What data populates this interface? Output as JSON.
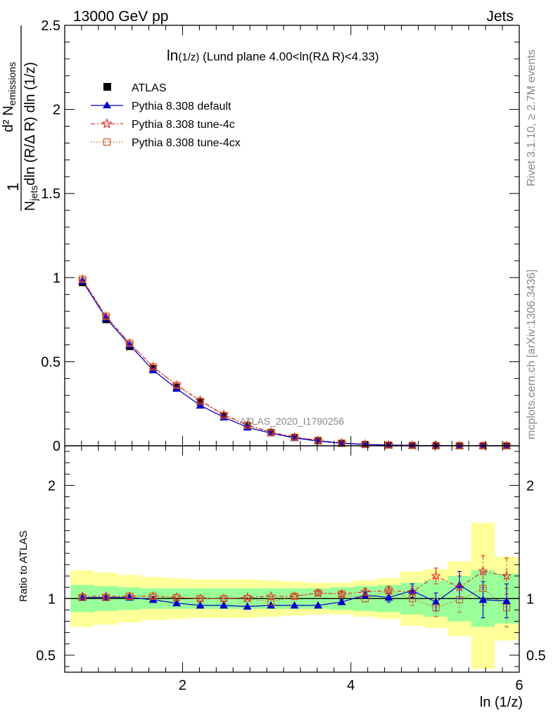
{
  "header": {
    "left": "13000 GeV pp",
    "right": "Jets"
  },
  "plot_title": {
    "main": "ln",
    "sub": "(1/z)",
    "rest": " (Lund plane 4.00<ln(RΔ R)<4.33)"
  },
  "ylabel_top": {
    "one": "1",
    "line1": "d² N",
    "line1_sub": "emissions",
    "line2a": "N",
    "line2_sub": "jets",
    "line2b": "dln (R/Δ R) dln (1/z)"
  },
  "ylabel_ratio": "Ratio to ATLAS",
  "xlabel": "ln (1/z)",
  "watermark": "ATLAS_2020_I1790256",
  "side_text_1": "Rivet 3.1.10, ≥ 2.7M events",
  "side_text_2": "mcplots.cern.ch [arXiv:1306.3436]",
  "colors": {
    "data": "#000000",
    "default": "#0000cc",
    "tune4c": "#e03030",
    "tune4cx": "#c85a1e",
    "band_inner": "#99ff99",
    "band_outer": "#ffff99"
  },
  "chart_data": [
    {
      "type": "scatter",
      "panel": "main",
      "xlim": [
        0.6,
        6.0
      ],
      "ylim": [
        0,
        2.5
      ],
      "yticks": [
        "0",
        "0.5",
        "1",
        "1.5",
        "2",
        "2.5"
      ],
      "xticks": [
        "2",
        "4",
        "6"
      ],
      "x": [
        0.81,
        1.09,
        1.37,
        1.65,
        1.93,
        2.21,
        2.49,
        2.77,
        3.05,
        3.33,
        3.61,
        3.89,
        4.17,
        4.45,
        4.73,
        5.01,
        5.29,
        5.57,
        5.85
      ],
      "series": [
        {
          "name": "ATLAS",
          "values": [
            0.97,
            0.75,
            0.59,
            0.46,
            0.35,
            0.26,
            0.18,
            0.12,
            0.08,
            0.05,
            0.03,
            0.015,
            0.008,
            0.004,
            0.002,
            0.001,
            0.0005,
            0.0003,
            0.0002
          ]
        },
        {
          "name": "Pythia 8.308 default",
          "values": [
            0.98,
            0.76,
            0.6,
            0.45,
            0.34,
            0.24,
            0.17,
            0.11,
            0.075,
            0.047,
            0.028,
            0.015,
            0.008,
            0.004,
            0.002,
            0.001,
            0.0005,
            0.0003,
            0.0002
          ]
        },
        {
          "name": "Pythia 8.308 tune-4c",
          "values": [
            0.99,
            0.77,
            0.61,
            0.47,
            0.36,
            0.27,
            0.185,
            0.125,
            0.082,
            0.052,
            0.032,
            0.016,
            0.009,
            0.0045,
            0.0022,
            0.0012,
            0.0006,
            0.0004,
            0.0003
          ]
        },
        {
          "name": "Pythia 8.308 tune-4cx",
          "values": [
            0.99,
            0.77,
            0.61,
            0.47,
            0.36,
            0.265,
            0.18,
            0.122,
            0.078,
            0.051,
            0.032,
            0.016,
            0.008,
            0.0045,
            0.002,
            0.001,
            0.0005,
            0.0003,
            0.0002
          ]
        }
      ]
    },
    {
      "type": "scatter",
      "panel": "ratio",
      "ylabel": "Ratio to ATLAS",
      "xlabel": "ln (1/z)",
      "xlim": [
        0.6,
        6.0
      ],
      "ylim": [
        0.35,
        2.35
      ],
      "yticks": [
        "0.5",
        "1",
        "2"
      ],
      "xticks": [
        "2",
        "4",
        "6"
      ],
      "x": [
        0.81,
        1.09,
        1.37,
        1.65,
        1.93,
        2.21,
        2.49,
        2.77,
        3.05,
        3.33,
        3.61,
        3.89,
        4.17,
        4.45,
        4.73,
        5.01,
        5.29,
        5.57,
        5.85
      ],
      "bins": [
        [
          0.67,
          0.95
        ],
        [
          0.95,
          1.23
        ],
        [
          1.23,
          1.51
        ],
        [
          1.51,
          1.79
        ],
        [
          1.79,
          2.07
        ],
        [
          2.07,
          2.35
        ],
        [
          2.35,
          2.63
        ],
        [
          2.63,
          2.91
        ],
        [
          2.91,
          3.19
        ],
        [
          3.19,
          3.47
        ],
        [
          3.47,
          3.75
        ],
        [
          3.75,
          4.03
        ],
        [
          4.03,
          4.31
        ],
        [
          4.31,
          4.59
        ],
        [
          4.59,
          4.87
        ],
        [
          4.87,
          5.15
        ],
        [
          5.15,
          5.43
        ],
        [
          5.43,
          5.71
        ],
        [
          5.71,
          5.99
        ]
      ],
      "band_inner": [
        [
          0.88,
          1.12
        ],
        [
          0.89,
          1.11
        ],
        [
          0.9,
          1.1
        ],
        [
          0.91,
          1.09
        ],
        [
          0.91,
          1.09
        ],
        [
          0.91,
          1.09
        ],
        [
          0.91,
          1.09
        ],
        [
          0.91,
          1.09
        ],
        [
          0.91,
          1.09
        ],
        [
          0.91,
          1.09
        ],
        [
          0.91,
          1.09
        ],
        [
          0.9,
          1.1
        ],
        [
          0.89,
          1.11
        ],
        [
          0.88,
          1.12
        ],
        [
          0.86,
          1.14
        ],
        [
          0.84,
          1.16
        ],
        [
          0.8,
          1.2
        ],
        [
          0.75,
          1.25
        ],
        [
          0.78,
          1.22
        ]
      ],
      "band_outer": [
        [
          0.75,
          1.25
        ],
        [
          0.77,
          1.23
        ],
        [
          0.79,
          1.21
        ],
        [
          0.81,
          1.19
        ],
        [
          0.82,
          1.18
        ],
        [
          0.83,
          1.17
        ],
        [
          0.83,
          1.17
        ],
        [
          0.83,
          1.17
        ],
        [
          0.84,
          1.16
        ],
        [
          0.85,
          1.15
        ],
        [
          0.86,
          1.14
        ],
        [
          0.86,
          1.14
        ],
        [
          0.84,
          1.16
        ],
        [
          0.82,
          1.18
        ],
        [
          0.76,
          1.24
        ],
        [
          0.74,
          1.26
        ],
        [
          0.67,
          1.33
        ],
        [
          0.38,
          1.67
        ],
        [
          0.63,
          1.37
        ]
      ],
      "series": [
        {
          "name": "Pythia 8.308 default",
          "values": [
            1.01,
            1.01,
            1.01,
            0.99,
            0.96,
            0.94,
            0.94,
            0.93,
            0.94,
            0.94,
            0.94,
            0.97,
            1.03,
            1.01,
            1.07,
            0.97,
            1.12,
            0.99,
            0.98
          ],
          "err": [
            0.01,
            0.01,
            0.01,
            0.01,
            0.01,
            0.01,
            0.01,
            0.01,
            0.01,
            0.01,
            0.01,
            0.02,
            0.03,
            0.04,
            0.06,
            0.08,
            0.12,
            0.16,
            0.15
          ]
        },
        {
          "name": "Pythia 8.308 tune-4c",
          "values": [
            1.02,
            1.02,
            1.02,
            1.02,
            1.01,
            1.0,
            1.0,
            1.01,
            1.02,
            1.02,
            1.05,
            1.04,
            1.06,
            1.07,
            1.06,
            1.2,
            1.1,
            1.24,
            1.2
          ],
          "err": [
            0.01,
            0.01,
            0.01,
            0.01,
            0.01,
            0.01,
            0.01,
            0.01,
            0.01,
            0.01,
            0.02,
            0.02,
            0.03,
            0.04,
            0.05,
            0.07,
            0.1,
            0.14,
            0.16
          ]
        },
        {
          "name": "Pythia 8.308 tune-4cx",
          "values": [
            1.01,
            1.01,
            1.02,
            1.02,
            1.01,
            1.0,
            1.0,
            1.0,
            0.97,
            1.02,
            1.05,
            1.04,
            1.0,
            1.07,
            1.0,
            0.92,
            0.99,
            1.09,
            0.92
          ],
          "err": [
            0.01,
            0.01,
            0.01,
            0.01,
            0.01,
            0.01,
            0.01,
            0.01,
            0.02,
            0.02,
            0.02,
            0.02,
            0.03,
            0.04,
            0.06,
            0.08,
            0.11,
            0.15,
            0.17
          ]
        }
      ]
    }
  ]
}
